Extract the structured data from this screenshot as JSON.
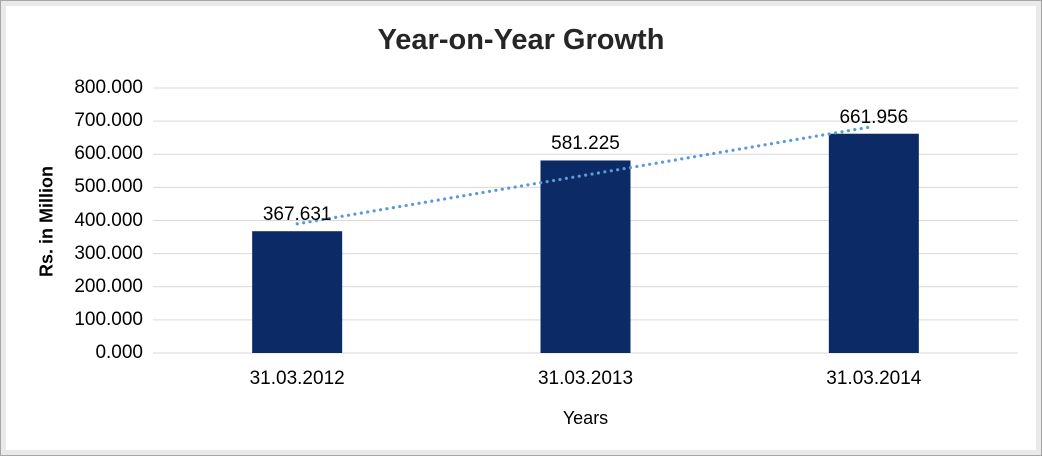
{
  "chart_data": {
    "type": "bar",
    "title": "Year-on-Year Growth",
    "xlabel": "Years",
    "ylabel": "Rs. in Million",
    "categories": [
      "31.03.2012",
      "31.03.2013",
      "31.03.2014"
    ],
    "values": [
      367.631,
      581.225,
      661.956
    ],
    "data_labels": [
      "367.631",
      "581.225",
      "661.956"
    ],
    "y_ticks": [
      "800.000",
      "700.000",
      "600.000",
      "500.000",
      "400.000",
      "300.000",
      "200.000",
      "100.000",
      "0.000"
    ],
    "ylim": [
      0,
      800
    ],
    "y_step": 100,
    "grid": true,
    "legend_position": "none",
    "series": [
      {
        "name": "Rs. in Million",
        "values": [
          367.631,
          581.225,
          661.956
        ]
      }
    ],
    "trendline": {
      "type": "linear",
      "style": "dotted",
      "endpoint_values": [
        389.775,
        684.1
      ]
    }
  },
  "colors": {
    "bar": "#0b2a66",
    "trendline": "#5b9bd5",
    "gridline": "#d9d9d9",
    "text": "#000000",
    "title_text": "#262626",
    "frame_border": "#a6a6a6",
    "frame_background": "#e9e9e9",
    "plot_background": "#ffffff"
  }
}
